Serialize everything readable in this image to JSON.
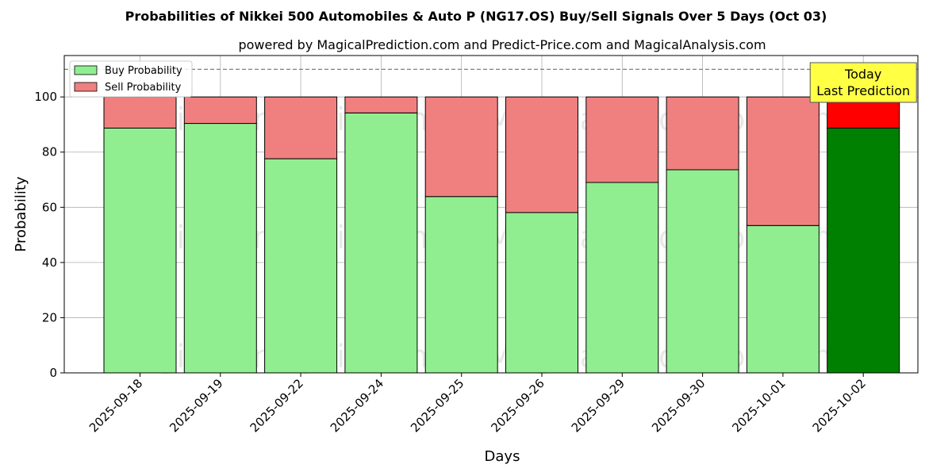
{
  "chart_data": {
    "type": "bar",
    "stacked": true,
    "title": "Probabilities of Nikkei 500 Automobiles & Auto P (NG17.OS) Buy/Sell Signals Over 5 Days (Oct 03)",
    "subtitle": "powered by MagicalPrediction.com and Predict-Price.com and MagicalAnalysis.com",
    "xlabel": "Days",
    "ylabel": "Probability",
    "ylim": [
      0,
      115
    ],
    "yticks": [
      0,
      20,
      40,
      60,
      80,
      100
    ],
    "grid": true,
    "legend_position": "top-left",
    "reference_line": 110,
    "categories": [
      "2025-09-18",
      "2025-09-19",
      "2025-09-22",
      "2025-09-24",
      "2025-09-25",
      "2025-09-26",
      "2025-09-29",
      "2025-09-30",
      "2025-10-01",
      "2025-10-02"
    ],
    "series": [
      {
        "name": "Buy Probability",
        "color": "#90ee90",
        "highlight_color": "#008000",
        "values": [
          88.7,
          90.4,
          77.6,
          94.2,
          63.9,
          58.1,
          69.0,
          73.6,
          53.4,
          88.7
        ]
      },
      {
        "name": "Sell Probability",
        "color": "#f08080",
        "highlight_color": "#ff0000",
        "values": [
          11.3,
          9.6,
          22.4,
          5.8,
          36.1,
          41.9,
          31.0,
          26.4,
          46.6,
          11.3
        ]
      }
    ],
    "highlight_index": 9,
    "annotation": {
      "lines": [
        "Today",
        "Last Prediction"
      ],
      "background": "#ffff44"
    },
    "watermarks": [
      "MagicalAnalysis.com",
      "MagicalPrediction.com"
    ]
  }
}
